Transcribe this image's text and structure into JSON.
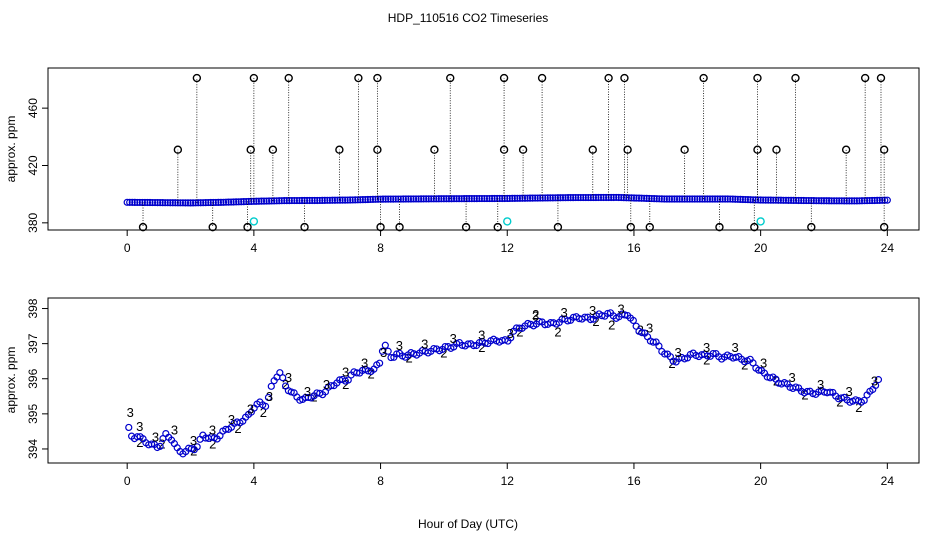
{
  "chart_data": {
    "title": "HDP_110516  CO2 Timeseries",
    "xlabel": "Hour of Day (UTC)",
    "xlim": [
      -2.5,
      25
    ],
    "xticks": [
      0,
      4,
      8,
      12,
      16,
      20,
      24
    ],
    "x_tick_labels": [
      "0",
      "4",
      "8",
      "12",
      "16",
      "20",
      "24"
    ],
    "colors": {
      "primary": "#0000cc",
      "secondary": "#00aa00",
      "marker_black": "#000000",
      "marker_cyan": "#00cccc"
    },
    "panels": [
      {
        "type": "scatter",
        "name": "raw",
        "ylabel": "approx. ppm",
        "ylim": [
          375,
          488
        ],
        "yticks": [
          380,
          420,
          460
        ],
        "y_tick_labels": [
          "380",
          "420",
          "460"
        ],
        "baseline": [
          [
            0,
            394.3
          ],
          [
            1,
            394.1
          ],
          [
            2,
            393.9
          ],
          [
            3,
            394.3
          ],
          [
            4,
            395.0
          ],
          [
            5,
            395.5
          ],
          [
            6,
            395.6
          ],
          [
            7,
            395.9
          ],
          [
            8,
            396.5
          ],
          [
            10,
            396.8
          ],
          [
            12,
            397.0
          ],
          [
            14,
            397.6
          ],
          [
            15.5,
            397.7
          ],
          [
            17,
            396.6
          ],
          [
            19,
            396.6
          ],
          [
            20,
            395.9
          ],
          [
            22,
            395.4
          ],
          [
            23,
            395.3
          ],
          [
            24,
            395.8
          ]
        ],
        "spikes": [
          {
            "x": 0.5,
            "y": 377
          },
          {
            "x": 1.6,
            "y": 431
          },
          {
            "x": 2.2,
            "y": 481
          },
          {
            "x": 2.7,
            "y": 377
          },
          {
            "x": 3.9,
            "y": 431
          },
          {
            "x": 4.0,
            "y": 481
          },
          {
            "x": 3.8,
            "y": 377
          },
          {
            "x": 4.6,
            "y": 431
          },
          {
            "x": 5.1,
            "y": 481
          },
          {
            "x": 5.6,
            "y": 377
          },
          {
            "x": 6.7,
            "y": 431
          },
          {
            "x": 7.3,
            "y": 481
          },
          {
            "x": 7.9,
            "y": 481
          },
          {
            "x": 7.9,
            "y": 431
          },
          {
            "x": 8.0,
            "y": 377
          },
          {
            "x": 8.6,
            "y": 377
          },
          {
            "x": 9.7,
            "y": 431
          },
          {
            "x": 10.2,
            "y": 481
          },
          {
            "x": 10.7,
            "y": 377
          },
          {
            "x": 11.9,
            "y": 431
          },
          {
            "x": 11.9,
            "y": 481
          },
          {
            "x": 11.7,
            "y": 377
          },
          {
            "x": 12.5,
            "y": 431
          },
          {
            "x": 13.1,
            "y": 481
          },
          {
            "x": 13.6,
            "y": 377
          },
          {
            "x": 14.7,
            "y": 431
          },
          {
            "x": 15.2,
            "y": 481
          },
          {
            "x": 15.7,
            "y": 481
          },
          {
            "x": 15.8,
            "y": 431
          },
          {
            "x": 15.9,
            "y": 377
          },
          {
            "x": 16.5,
            "y": 377
          },
          {
            "x": 17.6,
            "y": 431
          },
          {
            "x": 18.2,
            "y": 481
          },
          {
            "x": 18.7,
            "y": 377
          },
          {
            "x": 19.9,
            "y": 481
          },
          {
            "x": 19.9,
            "y": 431
          },
          {
            "x": 19.8,
            "y": 377
          },
          {
            "x": 20.5,
            "y": 431
          },
          {
            "x": 21.1,
            "y": 481
          },
          {
            "x": 21.6,
            "y": 377
          },
          {
            "x": 22.7,
            "y": 431
          },
          {
            "x": 23.3,
            "y": 481
          },
          {
            "x": 23.8,
            "y": 481
          },
          {
            "x": 23.9,
            "y": 431
          },
          {
            "x": 23.9,
            "y": 377
          }
        ],
        "cyan_points": [
          {
            "x": 4.0,
            "y": 381
          },
          {
            "x": 12.0,
            "y": 381
          },
          {
            "x": 20.0,
            "y": 381
          }
        ]
      },
      {
        "type": "scatter",
        "name": "filtered",
        "ylabel": "approx. ppm",
        "ylim": [
          393.6,
          398.3
        ],
        "yticks": [
          394,
          395,
          396,
          397,
          398
        ],
        "y_tick_labels": [
          "394",
          "395",
          "396",
          "397",
          "398"
        ],
        "series": [
          {
            "name": "3",
            "marker_label": "3",
            "points": [
              [
                0.0,
                394.8
              ],
              [
                0.1,
                394.35
              ],
              [
                0.2,
                394.3
              ],
              [
                0.3,
                394.4
              ],
              [
                0.5,
                394.25
              ],
              [
                0.6,
                394.2
              ],
              [
                0.8,
                394.1
              ],
              [
                1.0,
                394.05
              ],
              [
                1.2,
                394.4
              ],
              [
                1.4,
                394.3
              ],
              [
                1.6,
                393.95
              ],
              [
                1.8,
                393.9
              ],
              [
                2.0,
                394.0
              ],
              [
                2.2,
                394.05
              ],
              [
                2.4,
                394.4
              ],
              [
                2.6,
                394.3
              ],
              [
                2.8,
                394.3
              ],
              [
                3.0,
                394.45
              ],
              [
                3.2,
                394.6
              ],
              [
                3.4,
                394.7
              ],
              [
                3.6,
                394.8
              ],
              [
                3.8,
                394.9
              ],
              [
                4.0,
                395.2
              ],
              [
                4.2,
                395.3
              ],
              [
                4.4,
                395.25
              ],
              [
                4.6,
                395.9
              ],
              [
                4.8,
                396.2
              ],
              [
                5.0,
                395.8
              ],
              [
                5.2,
                395.6
              ],
              [
                5.4,
                395.45
              ],
              [
                5.6,
                395.4
              ],
              [
                5.8,
                395.5
              ],
              [
                6.0,
                395.55
              ],
              [
                6.2,
                395.6
              ],
              [
                6.4,
                395.75
              ],
              [
                6.6,
                395.9
              ],
              [
                6.8,
                395.95
              ],
              [
                7.0,
                396.0
              ],
              [
                7.2,
                396.2
              ],
              [
                7.4,
                396.2
              ],
              [
                7.6,
                396.25
              ],
              [
                7.8,
                396.25
              ],
              [
                8.0,
                396.5
              ],
              [
                8.1,
                397.05
              ],
              [
                8.3,
                396.6
              ],
              [
                8.5,
                396.7
              ],
              [
                8.7,
                396.65
              ],
              [
                9.0,
                396.7
              ],
              [
                9.3,
                396.75
              ],
              [
                9.6,
                396.8
              ],
              [
                9.9,
                396.85
              ],
              [
                10.2,
                396.9
              ],
              [
                10.5,
                397.0
              ],
              [
                10.8,
                396.95
              ],
              [
                11.1,
                397.0
              ],
              [
                11.4,
                397.05
              ],
              [
                11.7,
                397.1
              ],
              [
                12.0,
                397.05
              ],
              [
                12.2,
                397.35
              ],
              [
                12.5,
                397.5
              ],
              [
                12.8,
                397.55
              ],
              [
                13.1,
                397.6
              ],
              [
                13.4,
                397.55
              ],
              [
                13.7,
                397.65
              ],
              [
                14.0,
                397.7
              ],
              [
                14.3,
                397.75
              ],
              [
                14.6,
                397.7
              ],
              [
                14.9,
                397.8
              ],
              [
                15.2,
                397.85
              ],
              [
                15.5,
                397.75
              ],
              [
                15.8,
                397.85
              ],
              [
                16.1,
                397.45
              ],
              [
                16.4,
                397.2
              ],
              [
                16.7,
                397.0
              ],
              [
                17.0,
                396.7
              ],
              [
                17.3,
                396.5
              ],
              [
                17.6,
                396.6
              ],
              [
                17.9,
                396.7
              ],
              [
                18.2,
                396.65
              ],
              [
                18.5,
                396.7
              ],
              [
                18.8,
                396.6
              ],
              [
                19.1,
                396.65
              ],
              [
                19.4,
                396.55
              ],
              [
                19.7,
                396.5
              ],
              [
                20.0,
                396.2
              ],
              [
                20.3,
                396.05
              ],
              [
                20.6,
                395.9
              ],
              [
                20.9,
                395.8
              ],
              [
                21.2,
                395.7
              ],
              [
                21.5,
                395.6
              ],
              [
                21.8,
                395.6
              ],
              [
                22.1,
                395.65
              ],
              [
                22.4,
                395.5
              ],
              [
                22.7,
                395.4
              ],
              [
                23.0,
                395.35
              ],
              [
                23.3,
                395.4
              ],
              [
                23.5,
                395.7
              ],
              [
                23.7,
                395.9
              ],
              [
                23.8,
                396.05
              ]
            ]
          },
          {
            "name": "2",
            "marker_label": "2",
            "points": [
              [
                0.4,
                394.2
              ],
              [
                1.1,
                394.15
              ],
              [
                2.1,
                393.95
              ],
              [
                2.7,
                394.15
              ],
              [
                3.5,
                394.6
              ],
              [
                4.3,
                395.05
              ],
              [
                5.0,
                395.85
              ],
              [
                5.9,
                395.5
              ],
              [
                6.9,
                395.85
              ],
              [
                7.7,
                396.15
              ],
              [
                8.9,
                396.6
              ],
              [
                10.0,
                396.75
              ],
              [
                11.2,
                396.9
              ],
              [
                12.4,
                397.35
              ],
              [
                12.9,
                397.85
              ],
              [
                13.6,
                397.35
              ],
              [
                14.8,
                397.65
              ],
              [
                15.3,
                397.55
              ],
              [
                16.2,
                397.4
              ],
              [
                17.2,
                396.45
              ],
              [
                18.3,
                396.55
              ],
              [
                19.5,
                396.4
              ],
              [
                20.5,
                395.95
              ],
              [
                21.4,
                395.55
              ],
              [
                22.5,
                395.35
              ],
              [
                23.1,
                395.2
              ]
            ]
          }
        ]
      }
    ]
  }
}
